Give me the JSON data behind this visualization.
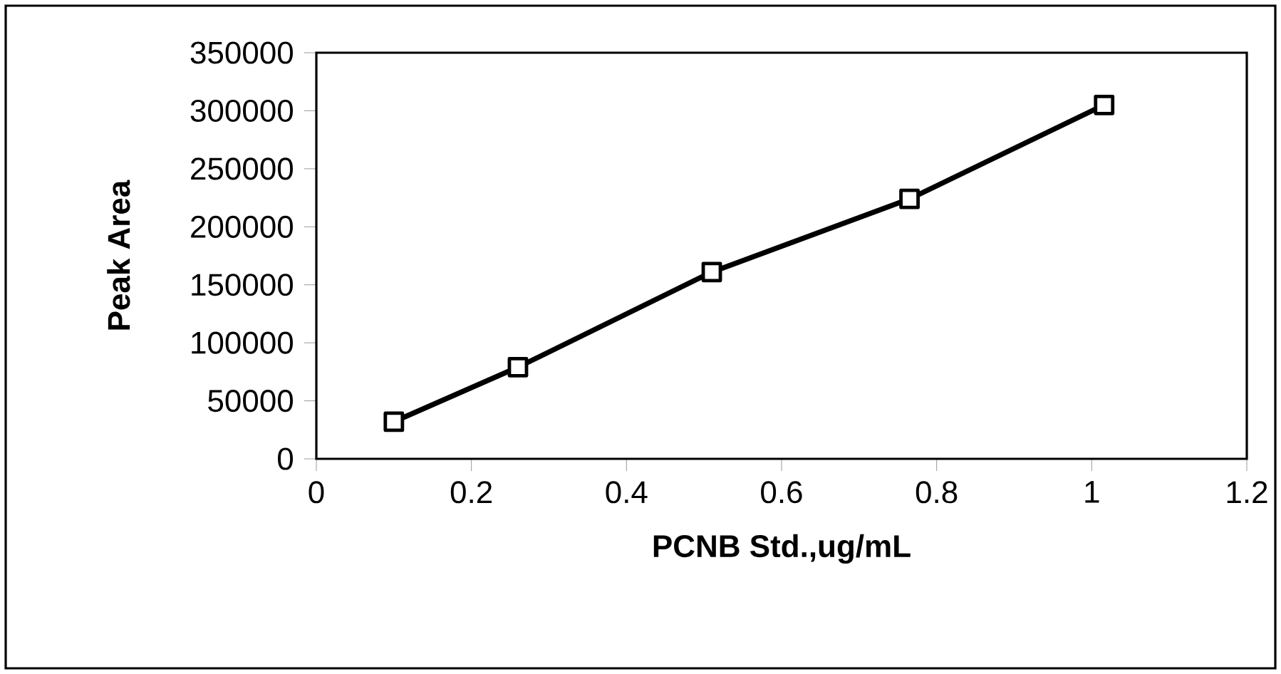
{
  "chart_data": {
    "type": "line",
    "xlabel": "PCNB Std.,ug/mL",
    "ylabel": "Peak Area",
    "x": [
      0.1,
      0.26,
      0.51,
      0.765,
      1.016
    ],
    "series": [
      {
        "color": "#000000",
        "values": [
          32000,
          79000,
          161000,
          224000,
          305000
        ]
      }
    ],
    "marker": "square",
    "line_style": "solid",
    "xlim": [
      0,
      1.2
    ],
    "xticks": [
      0,
      0.2,
      0.4,
      0.6,
      0.8,
      1,
      1.2
    ],
    "ylim": [
      0,
      350000
    ],
    "yticks": [
      0,
      50000,
      100000,
      150000,
      200000,
      250000,
      300000,
      350000
    ],
    "grid": false
  }
}
